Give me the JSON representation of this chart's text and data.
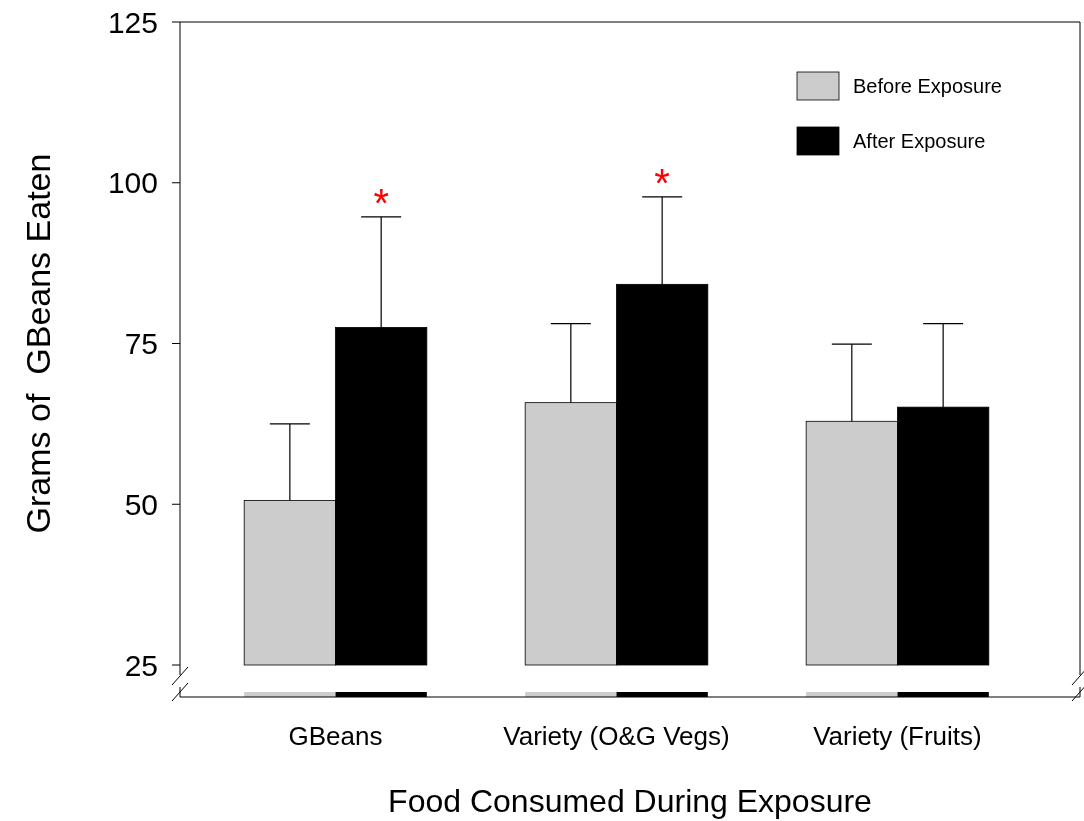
{
  "chart_data": {
    "type": "bar",
    "xlabel": "Food Consumed During Exposure",
    "ylabel": "Grams of  GBeans Eaten",
    "categories": [
      "GBeans",
      "Variety (O&G Vegs)",
      "Variety (Fruits)"
    ],
    "series": [
      {
        "name": "Before Exposure",
        "color": "#cccccc",
        "values": [
          50.6,
          65.8,
          62.9
        ],
        "errors": [
          [
            50.6,
            62.5
          ],
          [
            65.8,
            78.1
          ],
          [
            62.9,
            74.9
          ]
        ]
      },
      {
        "name": "After Exposure",
        "color": "#000000",
        "values": [
          77.5,
          84.2,
          65.1
        ],
        "errors": [
          [
            77.5,
            94.7
          ],
          [
            84.2,
            97.8
          ],
          [
            65.1,
            78.1
          ]
        ]
      }
    ],
    "ylim": [
      25,
      125
    ],
    "yticks": [
      25,
      50,
      75,
      100,
      125
    ],
    "legend": "top right",
    "annotations": [
      "*",
      "*"
    ]
  }
}
